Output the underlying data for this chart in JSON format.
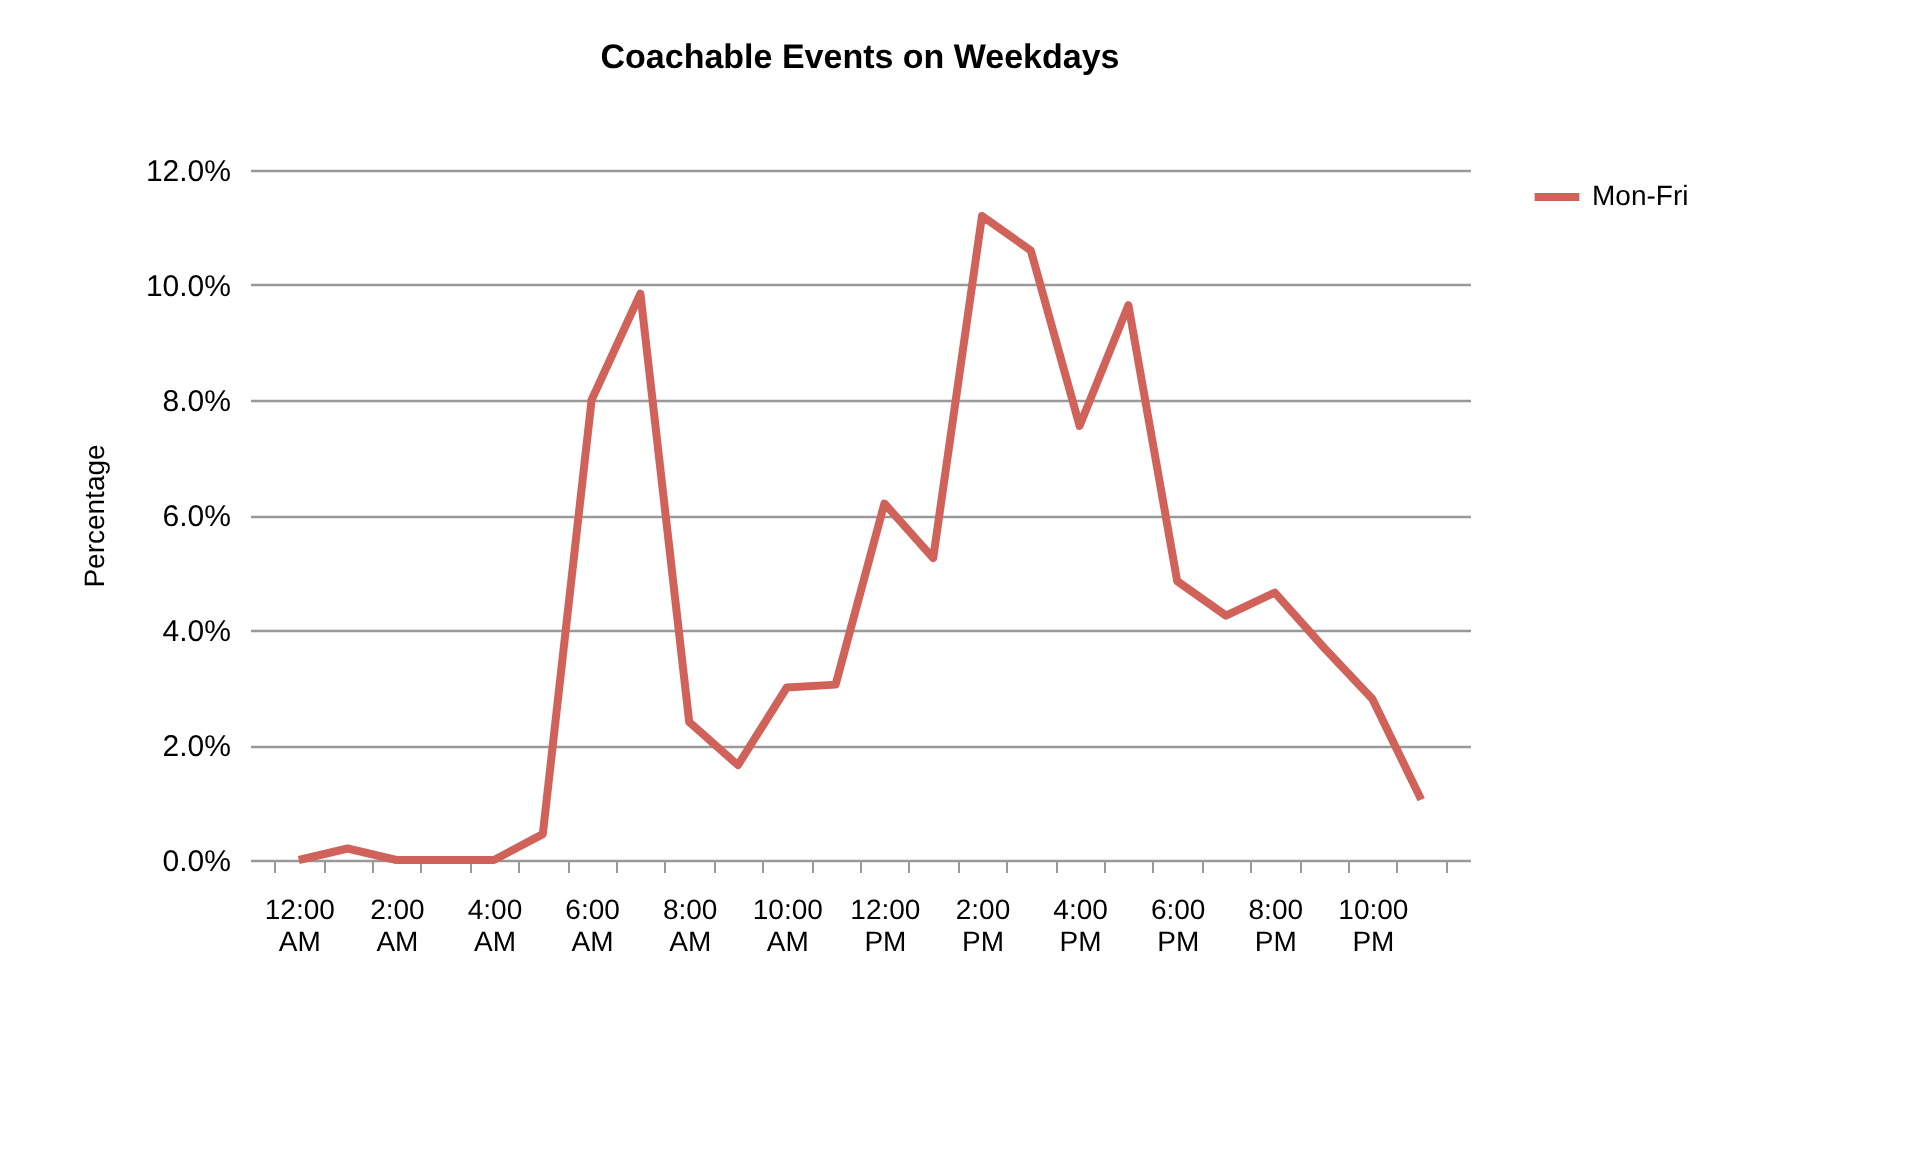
{
  "chart_data": {
    "type": "line",
    "title": "Coachable Events on Weekdays",
    "ylabel": "Percentage",
    "categories": [
      "12:00 AM",
      null,
      "2:00 AM",
      null,
      "4:00 AM",
      null,
      "6:00 AM",
      null,
      "8:00 AM",
      null,
      "10:00 AM",
      null,
      "12:00 PM",
      null,
      "2:00 PM",
      null,
      "4:00 PM",
      null,
      "6:00 PM",
      null,
      "8:00 PM",
      null,
      "10:00 PM",
      null
    ],
    "series": [
      {
        "name": "Mon-Fri",
        "color": "#d0625a",
        "values": [
          0.0,
          0.2,
          0.0,
          0.0,
          0.0,
          0.45,
          8.0,
          9.85,
          2.4,
          1.65,
          3.0,
          3.05,
          6.2,
          5.25,
          11.2,
          10.6,
          7.55,
          9.65,
          4.85,
          4.25,
          4.65,
          3.7,
          2.8,
          1.05
        ]
      }
    ],
    "ylim": [
      0,
      12
    ],
    "yticks": [
      {
        "value": 0,
        "label": "0.0%"
      },
      {
        "value": 2,
        "label": "2.0%"
      },
      {
        "value": 4,
        "label": "4.0%"
      },
      {
        "value": 6,
        "label": "6.0%"
      },
      {
        "value": 8,
        "label": "8.0%"
      },
      {
        "value": 10,
        "label": "10.0%"
      },
      {
        "value": 12,
        "label": "12.0%"
      }
    ],
    "grid": "y",
    "legend": "right",
    "marker": "none",
    "line_style": "solid"
  }
}
